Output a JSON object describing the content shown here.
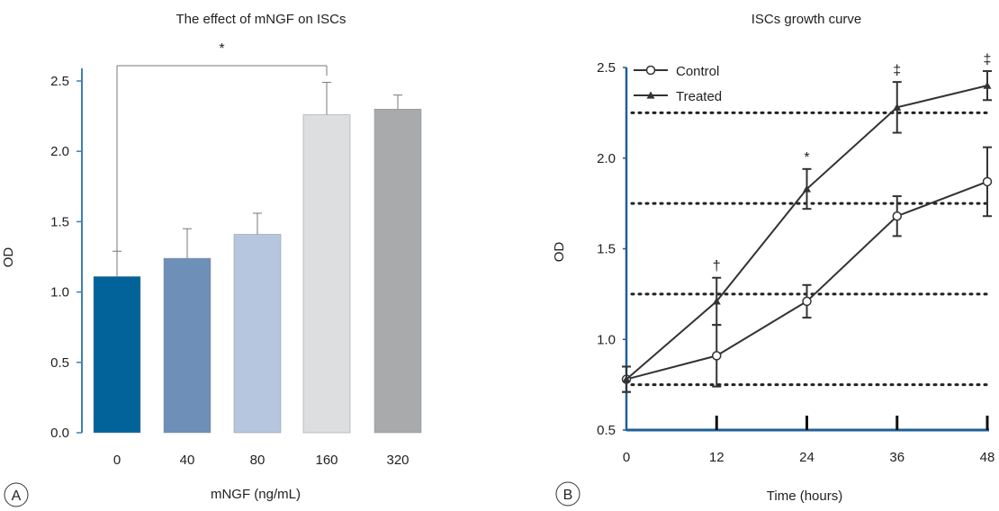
{
  "colors": {
    "axis_a": "#3f7fb5",
    "axis_b": "#1f5f9a",
    "line": "#333333",
    "grid": "#222222",
    "error_bar": "#777777"
  },
  "chart_data": [
    {
      "type": "bar",
      "panel_label": "A",
      "title": "The effect of mNGF on ISCs",
      "xlabel": "mNGF (ng/mL)",
      "ylabel": "OD",
      "categories": [
        "0",
        "40",
        "80",
        "160",
        "320"
      ],
      "values": [
        1.11,
        1.24,
        1.41,
        2.26,
        2.3
      ],
      "errors": [
        0.18,
        0.21,
        0.15,
        0.23,
        0.1
      ],
      "bar_colors": [
        "#02639a",
        "#6d8fb8",
        "#b6c6df",
        "#dcdee0",
        "#a8aaac"
      ],
      "ylim": [
        0,
        2.5
      ],
      "yticks": [
        "0.0",
        "0.5",
        "1.0",
        "1.5",
        "2.0",
        "2.5"
      ],
      "significance": {
        "from": "0",
        "to": "160",
        "label": "*"
      },
      "grid": false
    },
    {
      "type": "line",
      "panel_label": "B",
      "title": "ISCs growth curve",
      "xlabel": "Time (hours)",
      "ylabel": "OD",
      "x": [
        0,
        12,
        24,
        36,
        48
      ],
      "xticks": [
        "0",
        "12",
        "24",
        "36",
        "48"
      ],
      "ylim": [
        0.5,
        2.5
      ],
      "yticks": [
        "0.5",
        "1.0",
        "1.5",
        "2.0",
        "2.5"
      ],
      "reference_lines": [
        0.75,
        1.25,
        1.75,
        2.25
      ],
      "legend_position": "top-left",
      "series": [
        {
          "name": "Control",
          "marker": "circle",
          "values": [
            0.78,
            0.91,
            1.21,
            1.68,
            1.87
          ],
          "errors": [
            0.07,
            0.17,
            0.09,
            0.11,
            0.19
          ]
        },
        {
          "name": "Treated",
          "marker": "triangle",
          "values": [
            0.78,
            1.21,
            1.83,
            2.28,
            2.4
          ],
          "errors": [
            0.07,
            0.13,
            0.11,
            0.14,
            0.08
          ]
        }
      ],
      "annotations": [
        {
          "x": 12,
          "label": "†"
        },
        {
          "x": 24,
          "label": "*"
        },
        {
          "x": 36,
          "label": "‡"
        },
        {
          "x": 48,
          "label": "‡"
        }
      ]
    }
  ]
}
